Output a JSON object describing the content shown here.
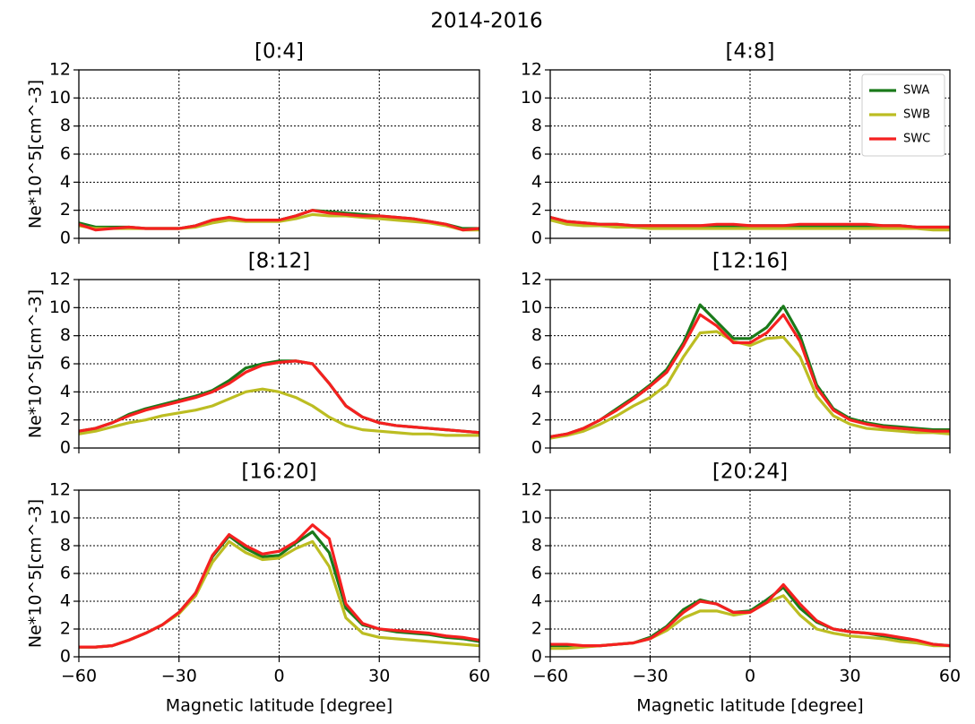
{
  "title": "2014-2016",
  "chart_data": [
    {
      "type": "line",
      "title": "[0:4]",
      "ylabel": "Ne*10^5[cm^-3]",
      "x_tick_labels": false,
      "x": [
        -60,
        -55,
        -50,
        -45,
        -40,
        -35,
        -30,
        -25,
        -20,
        -15,
        -10,
        -5,
        0,
        5,
        10,
        15,
        20,
        25,
        30,
        35,
        40,
        45,
        50,
        55,
        60
      ],
      "series": [
        {
          "color": "#1a7a1a",
          "values": [
            1.1,
            0.8,
            0.8,
            0.8,
            0.7,
            0.7,
            0.7,
            0.9,
            1.3,
            1.4,
            1.3,
            1.3,
            1.3,
            1.6,
            2.0,
            1.9,
            1.8,
            1.7,
            1.6,
            1.5,
            1.4,
            1.2,
            1.0,
            0.7,
            0.7
          ]
        },
        {
          "color": "#bcbd22",
          "values": [
            0.9,
            0.7,
            0.7,
            0.7,
            0.7,
            0.7,
            0.7,
            0.8,
            1.1,
            1.3,
            1.2,
            1.2,
            1.2,
            1.4,
            1.7,
            1.6,
            1.6,
            1.5,
            1.4,
            1.3,
            1.2,
            1.1,
            0.9,
            0.6,
            0.6
          ]
        },
        {
          "color": "#f52020",
          "values": [
            1.0,
            0.6,
            0.7,
            0.8,
            0.7,
            0.7,
            0.7,
            0.9,
            1.3,
            1.5,
            1.3,
            1.3,
            1.3,
            1.6,
            2.0,
            1.8,
            1.7,
            1.6,
            1.6,
            1.5,
            1.4,
            1.2,
            1.0,
            0.6,
            0.7
          ]
        }
      ],
      "xlim": [
        -60,
        60
      ],
      "xticks": [
        -60,
        -30,
        0,
        30,
        60
      ],
      "ylim": [
        0,
        12
      ],
      "yticks": [
        0,
        2,
        4,
        6,
        8,
        10,
        12
      ],
      "grid": true
    },
    {
      "type": "line",
      "title": "[4:8]",
      "x_tick_labels": false,
      "legend": "upper right",
      "x": [
        -60,
        -55,
        -50,
        -45,
        -40,
        -35,
        -30,
        -25,
        -20,
        -15,
        -10,
        -5,
        0,
        5,
        10,
        15,
        20,
        25,
        30,
        35,
        40,
        45,
        50,
        55,
        60
      ],
      "series": [
        {
          "name": "SWA",
          "color": "#1a7a1a",
          "values": [
            1.5,
            1.2,
            1.1,
            1.0,
            1.0,
            0.9,
            0.9,
            0.9,
            0.9,
            0.9,
            0.9,
            0.9,
            0.9,
            0.9,
            0.9,
            0.9,
            0.9,
            0.9,
            0.9,
            0.9,
            0.9,
            0.9,
            0.8,
            0.8,
            0.8
          ]
        },
        {
          "name": "SWB",
          "color": "#bcbd22",
          "values": [
            1.3,
            1.0,
            0.9,
            0.9,
            0.8,
            0.8,
            0.7,
            0.7,
            0.7,
            0.7,
            0.7,
            0.7,
            0.7,
            0.7,
            0.7,
            0.7,
            0.7,
            0.7,
            0.7,
            0.7,
            0.7,
            0.7,
            0.7,
            0.6,
            0.6
          ]
        },
        {
          "name": "SWC",
          "color": "#f52020",
          "values": [
            1.5,
            1.2,
            1.1,
            1.0,
            1.0,
            0.9,
            0.9,
            0.9,
            0.9,
            0.9,
            1.0,
            1.0,
            0.9,
            0.9,
            0.9,
            1.0,
            1.0,
            1.0,
            1.0,
            1.0,
            0.9,
            0.9,
            0.8,
            0.8,
            0.8
          ]
        }
      ],
      "xlim": [
        -60,
        60
      ],
      "xticks": [
        -60,
        -30,
        0,
        30,
        60
      ],
      "ylim": [
        0,
        12
      ],
      "yticks": [
        0,
        2,
        4,
        6,
        8,
        10,
        12
      ],
      "grid": true
    },
    {
      "type": "line",
      "title": "[8:12]",
      "ylabel": "Ne*10^5[cm^-3]",
      "x_tick_labels": false,
      "x": [
        -60,
        -55,
        -50,
        -45,
        -40,
        -35,
        -30,
        -25,
        -20,
        -15,
        -10,
        -5,
        0,
        5,
        10,
        15,
        20,
        25,
        30,
        35,
        40,
        45,
        50,
        55,
        60
      ],
      "series": [
        {
          "color": "#1a7a1a",
          "values": [
            1.2,
            1.4,
            1.8,
            2.4,
            2.8,
            3.1,
            3.4,
            3.7,
            4.1,
            4.8,
            5.7,
            6.0,
            6.2,
            6.2,
            6.0,
            4.6,
            3.0,
            2.2,
            1.8,
            1.6,
            1.5,
            1.4,
            1.3,
            1.2,
            1.1
          ]
        },
        {
          "color": "#bcbd22",
          "values": [
            1.0,
            1.2,
            1.5,
            1.8,
            2.0,
            2.3,
            2.5,
            2.7,
            3.0,
            3.5,
            4.0,
            4.2,
            4.0,
            3.6,
            3.0,
            2.2,
            1.6,
            1.3,
            1.2,
            1.1,
            1.0,
            1.0,
            0.9,
            0.9,
            0.9
          ]
        },
        {
          "color": "#f52020",
          "values": [
            1.2,
            1.4,
            1.8,
            2.3,
            2.7,
            3.0,
            3.3,
            3.6,
            4.0,
            4.6,
            5.4,
            5.9,
            6.1,
            6.2,
            6.0,
            4.6,
            3.0,
            2.2,
            1.8,
            1.6,
            1.5,
            1.4,
            1.3,
            1.2,
            1.1
          ]
        }
      ],
      "xlim": [
        -60,
        60
      ],
      "xticks": [
        -60,
        -30,
        0,
        30,
        60
      ],
      "ylim": [
        0,
        12
      ],
      "yticks": [
        0,
        2,
        4,
        6,
        8,
        10,
        12
      ],
      "grid": true
    },
    {
      "type": "line",
      "title": "[12:16]",
      "x_tick_labels": false,
      "x": [
        -60,
        -55,
        -50,
        -45,
        -40,
        -35,
        -30,
        -25,
        -20,
        -15,
        -10,
        -5,
        0,
        5,
        10,
        15,
        20,
        25,
        30,
        35,
        40,
        45,
        50,
        55,
        60
      ],
      "series": [
        {
          "color": "#1a7a1a",
          "values": [
            0.8,
            1.0,
            1.4,
            2.0,
            2.8,
            3.6,
            4.5,
            5.6,
            7.5,
            10.2,
            9.0,
            7.8,
            7.8,
            8.6,
            10.1,
            8.0,
            4.5,
            2.8,
            2.1,
            1.8,
            1.6,
            1.5,
            1.4,
            1.3,
            1.3
          ]
        },
        {
          "color": "#bcbd22",
          "values": [
            0.7,
            0.9,
            1.2,
            1.7,
            2.3,
            3.0,
            3.6,
            4.5,
            6.5,
            8.2,
            8.3,
            7.6,
            7.3,
            7.8,
            7.9,
            6.5,
            3.7,
            2.3,
            1.7,
            1.4,
            1.3,
            1.2,
            1.1,
            1.1,
            1.0
          ]
        },
        {
          "color": "#f52020",
          "values": [
            0.8,
            1.0,
            1.4,
            2.0,
            2.7,
            3.5,
            4.4,
            5.4,
            7.3,
            9.5,
            8.7,
            7.5,
            7.5,
            8.2,
            9.5,
            7.6,
            4.3,
            2.7,
            2.0,
            1.7,
            1.5,
            1.4,
            1.3,
            1.2,
            1.2
          ]
        }
      ],
      "xlim": [
        -60,
        60
      ],
      "xticks": [
        -60,
        -30,
        0,
        30,
        60
      ],
      "ylim": [
        0,
        12
      ],
      "yticks": [
        0,
        2,
        4,
        6,
        8,
        10,
        12
      ],
      "grid": true
    },
    {
      "type": "line",
      "title": "[16:20]",
      "ylabel": "Ne*10^5[cm^-3]",
      "xlabel": "Magnetic latitude [degree]",
      "x_tick_labels": true,
      "x": [
        -60,
        -55,
        -50,
        -45,
        -40,
        -35,
        -30,
        -25,
        -20,
        -15,
        -10,
        -5,
        0,
        5,
        10,
        15,
        20,
        25,
        30,
        35,
        40,
        45,
        50,
        55,
        60
      ],
      "series": [
        {
          "color": "#1a7a1a",
          "values": [
            0.7,
            0.7,
            0.8,
            1.2,
            1.7,
            2.3,
            3.2,
            4.6,
            7.2,
            8.7,
            7.8,
            7.2,
            7.3,
            8.2,
            9.0,
            7.5,
            3.5,
            2.3,
            2.0,
            1.8,
            1.7,
            1.6,
            1.4,
            1.3,
            1.1
          ]
        },
        {
          "color": "#bcbd22",
          "values": [
            0.7,
            0.7,
            0.8,
            1.2,
            1.7,
            2.3,
            3.1,
            4.4,
            6.8,
            8.3,
            7.5,
            7.0,
            7.1,
            7.8,
            8.3,
            6.5,
            2.8,
            1.7,
            1.4,
            1.3,
            1.2,
            1.1,
            1.0,
            0.9,
            0.8
          ]
        },
        {
          "color": "#f52020",
          "values": [
            0.7,
            0.7,
            0.8,
            1.2,
            1.7,
            2.3,
            3.2,
            4.6,
            7.3,
            8.8,
            8.0,
            7.4,
            7.6,
            8.3,
            9.5,
            8.5,
            3.8,
            2.4,
            2.0,
            1.9,
            1.8,
            1.7,
            1.5,
            1.4,
            1.2
          ]
        }
      ],
      "xlim": [
        -60,
        60
      ],
      "xticks": [
        {
          "value": -60,
          "label": "−60"
        },
        {
          "value": -30,
          "label": "−30"
        },
        0,
        30,
        60
      ],
      "ylim": [
        0,
        12
      ],
      "yticks": [
        0,
        2,
        4,
        6,
        8,
        10,
        12
      ],
      "grid": true
    },
    {
      "type": "line",
      "title": "[20:24]",
      "xlabel": "Magnetic latitude [degree]",
      "x_tick_labels": true,
      "x": [
        -60,
        -55,
        -50,
        -45,
        -40,
        -35,
        -30,
        -25,
        -20,
        -15,
        -10,
        -5,
        0,
        5,
        10,
        15,
        20,
        25,
        30,
        35,
        40,
        45,
        50,
        55,
        60
      ],
      "series": [
        {
          "color": "#1a7a1a",
          "values": [
            0.8,
            0.8,
            0.8,
            0.8,
            0.9,
            1.0,
            1.4,
            2.2,
            3.4,
            4.1,
            3.8,
            3.2,
            3.3,
            4.1,
            5.0,
            3.5,
            2.5,
            2.0,
            1.8,
            1.7,
            1.5,
            1.3,
            1.1,
            0.9,
            0.8
          ]
        },
        {
          "color": "#bcbd22",
          "values": [
            0.6,
            0.6,
            0.7,
            0.8,
            0.9,
            1.0,
            1.3,
            1.9,
            2.8,
            3.3,
            3.3,
            3.0,
            3.2,
            3.9,
            4.4,
            3.0,
            2.0,
            1.7,
            1.5,
            1.4,
            1.3,
            1.1,
            1.0,
            0.8,
            0.8
          ]
        },
        {
          "color": "#f52020",
          "values": [
            0.9,
            0.9,
            0.8,
            0.8,
            0.9,
            1.0,
            1.3,
            2.1,
            3.2,
            4.0,
            3.8,
            3.2,
            3.2,
            3.9,
            5.2,
            3.8,
            2.6,
            2.0,
            1.8,
            1.7,
            1.6,
            1.4,
            1.2,
            0.9,
            0.8
          ]
        }
      ],
      "xlim": [
        -60,
        60
      ],
      "xticks": [
        {
          "value": -60,
          "label": "−60"
        },
        {
          "value": -30,
          "label": "−30"
        },
        0,
        30,
        60
      ],
      "ylim": [
        0,
        12
      ],
      "yticks": [
        0,
        2,
        4,
        6,
        8,
        10,
        12
      ],
      "grid": true
    }
  ]
}
